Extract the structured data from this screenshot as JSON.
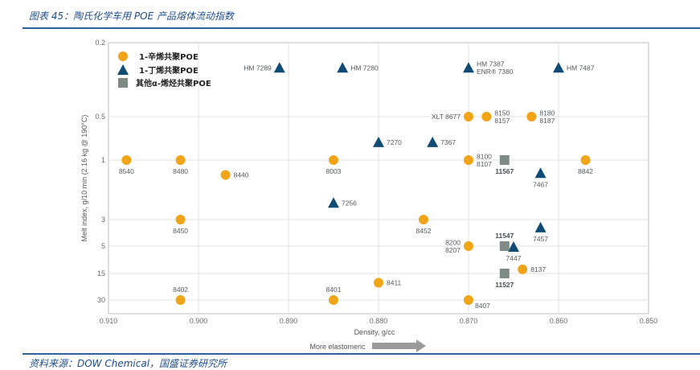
{
  "figure": {
    "title": "图表 45：陶氏化学车用 POE 产品熔体流动指数",
    "source": "资料来源：DOW Chemical，国盛证券研究所"
  },
  "chart_data": {
    "type": "scatter",
    "title": "",
    "xlabel": "Density, g/cc",
    "x_annotation": "More elastomeric",
    "ylabel": "Melt index, g/10 min (2.16 kg @ 190°C)",
    "xlim": [
      0.91,
      0.85
    ],
    "x_reversed": true,
    "x_ticks": [
      "0.910",
      "0.900",
      "0.890",
      "0.880",
      "0.870",
      "0.860",
      "0.850"
    ],
    "y_scale": "ordinal (tick positions; fractional = between ticks)",
    "y_ticks": [
      "0.2",
      "0.5",
      "1",
      "3",
      "5",
      "15",
      "30"
    ],
    "grid": true,
    "legend_position": "top-left",
    "colors": {
      "octene": "#F0A418",
      "butene": "#0F4C75",
      "other": "#7F8C86"
    },
    "series": [
      {
        "name": "1-辛烯共聚POE",
        "marker": "circle",
        "color_key": "octene",
        "points": [
          {
            "label": "8540",
            "x": 0.908,
            "y_pos": 2,
            "label_pos": "below"
          },
          {
            "label": "8480",
            "x": 0.902,
            "y_pos": 2,
            "label_pos": "below"
          },
          {
            "label": "8440",
            "x": 0.897,
            "y_pos": 2.25,
            "label_pos": "right"
          },
          {
            "label": "8003",
            "x": 0.885,
            "y_pos": 2,
            "label_pos": "below"
          },
          {
            "label": "8450",
            "x": 0.902,
            "y_pos": 3,
            "label_pos": "below"
          },
          {
            "label": "8452",
            "x": 0.875,
            "y_pos": 3,
            "label_pos": "below"
          },
          {
            "label": "8402",
            "x": 0.902,
            "y_pos": 6,
            "label_pos": "above"
          },
          {
            "label": "8401",
            "x": 0.885,
            "y_pos": 6,
            "label_pos": "above"
          },
          {
            "label": "8411",
            "x": 0.88,
            "y_pos": 5.35,
            "label_pos": "right"
          },
          {
            "label": "8407",
            "x": 0.87,
            "y_pos": 6,
            "label_pos": "below-right"
          },
          {
            "label": "XLT 8677",
            "x": 0.87,
            "y_pos": 1,
            "label_pos": "left"
          },
          {
            "label": "8150\n8157",
            "x": 0.868,
            "y_pos": 1,
            "label_pos": "right"
          },
          {
            "label": "8180\n8187",
            "x": 0.863,
            "y_pos": 1,
            "label_pos": "right"
          },
          {
            "label": "8100\n8107",
            "x": 0.87,
            "y_pos": 2,
            "label_pos": "right"
          },
          {
            "label": "8842",
            "x": 0.857,
            "y_pos": 2,
            "label_pos": "below"
          },
          {
            "label": "8200\n8207",
            "x": 0.87,
            "y_pos": 4,
            "label_pos": "left"
          },
          {
            "label": "8137",
            "x": 0.864,
            "y_pos": 4.85,
            "label_pos": "right"
          }
        ]
      },
      {
        "name": "1-丁烯共聚POE",
        "marker": "triangle",
        "color_key": "butene",
        "points": [
          {
            "label": "HM 7289",
            "x": 0.891,
            "y_pos": 0.34,
            "label_pos": "left"
          },
          {
            "label": "HM 7280",
            "x": 0.884,
            "y_pos": 0.34,
            "label_pos": "right"
          },
          {
            "label": "HM 7387\nENR® 7380",
            "x": 0.87,
            "y_pos": 0.34,
            "label_pos": "right"
          },
          {
            "label": "HM 7487",
            "x": 0.86,
            "y_pos": 0.34,
            "label_pos": "right"
          },
          {
            "label": "7270",
            "x": 0.88,
            "y_pos": 1.59,
            "label_pos": "right"
          },
          {
            "label": "7367",
            "x": 0.874,
            "y_pos": 1.59,
            "label_pos": "right"
          },
          {
            "label": "7256",
            "x": 0.885,
            "y_pos": 2.72,
            "label_pos": "right"
          },
          {
            "label": "7467",
            "x": 0.862,
            "y_pos": 2.22,
            "label_pos": "below"
          },
          {
            "label": "7457",
            "x": 0.862,
            "y_pos": 3.3,
            "label_pos": "below"
          },
          {
            "label": "7447",
            "x": 0.865,
            "y_pos": 4.03,
            "label_pos": "below"
          }
        ]
      },
      {
        "name": "其他α-烯烃共聚POE",
        "marker": "square",
        "color_key": "other",
        "points": [
          {
            "label": "11567",
            "x": 0.866,
            "y_pos": 2,
            "label_pos": "below"
          },
          {
            "label": "11547",
            "x": 0.866,
            "y_pos": 4,
            "label_pos": "above"
          },
          {
            "label": "11527",
            "x": 0.866,
            "y_pos": 5,
            "label_pos": "below"
          }
        ]
      }
    ]
  }
}
